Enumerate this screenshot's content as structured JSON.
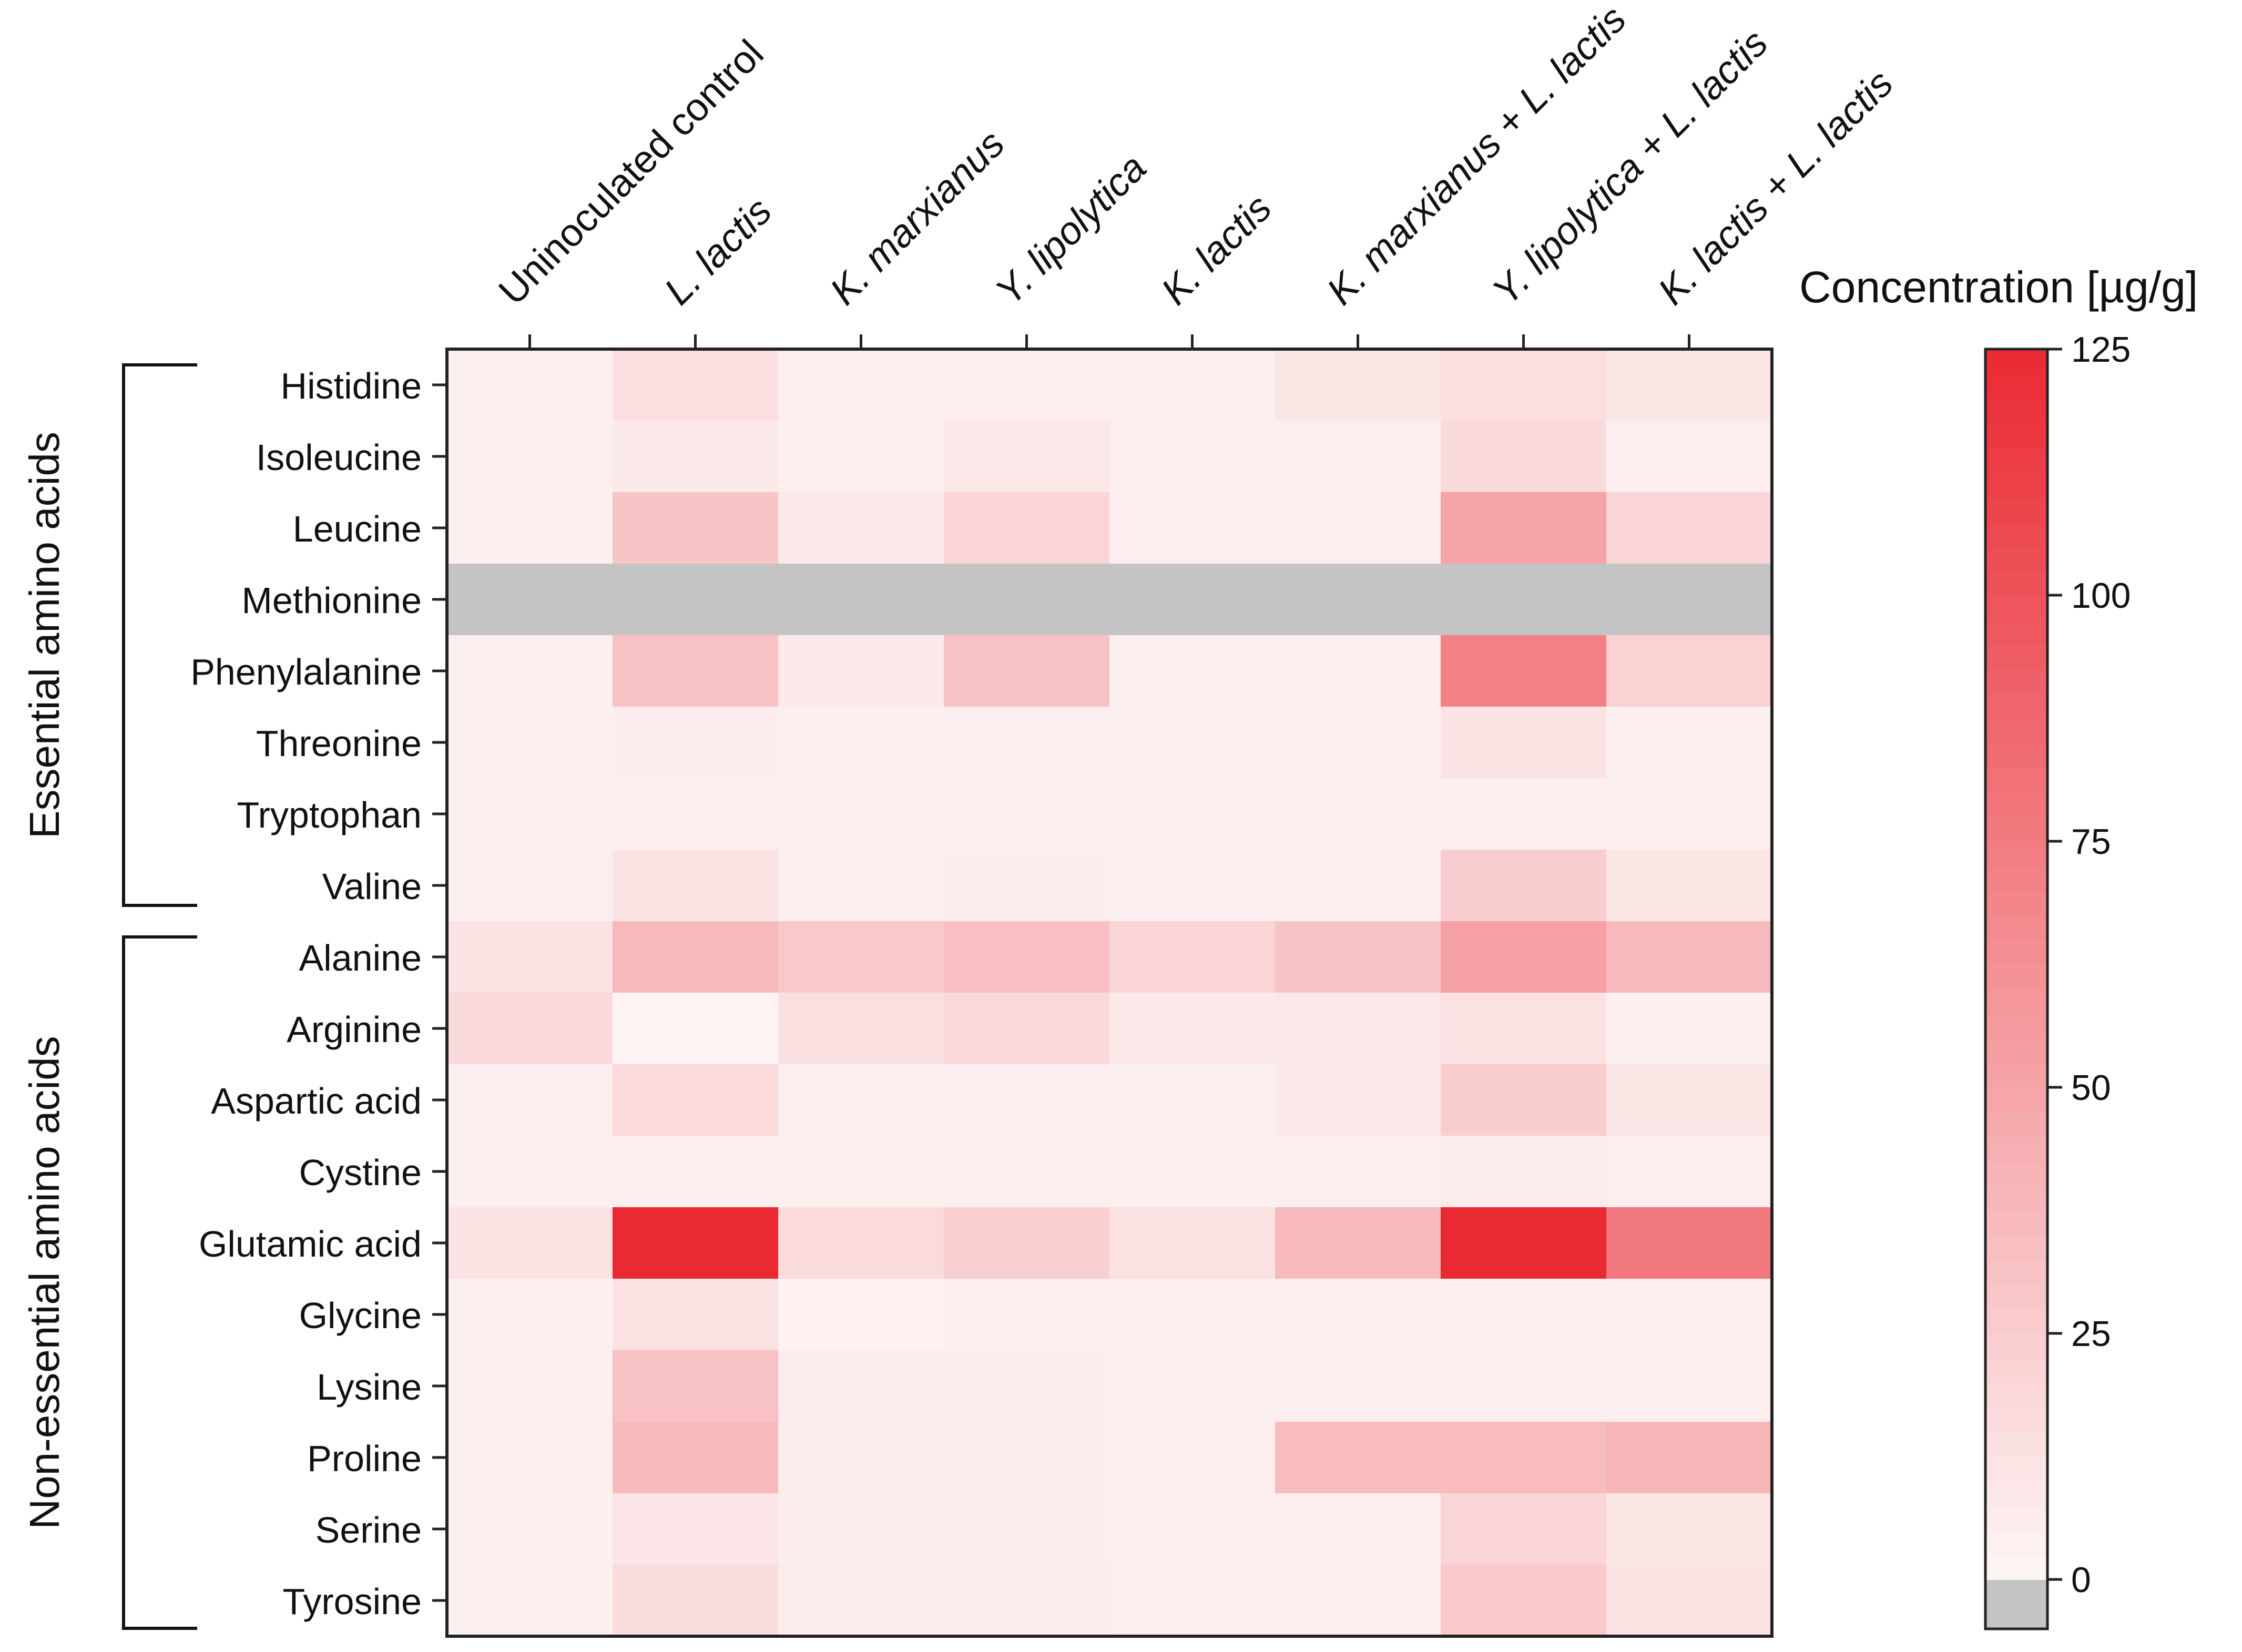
{
  "chart_data": {
    "type": "heatmap",
    "x_labels": [
      "Uninoculated control",
      "L. lactis",
      "K. marxianus",
      "Y. lipolytica",
      "K. lactis",
      "K. marxianus + L. lactis",
      "Y. lipolytica + L. lactis",
      "K. lactis + L. lactis"
    ],
    "y_labels": [
      "Histidine",
      "Isoleucine",
      "Leucine",
      "Methionine",
      "Phenylalanine",
      "Threonine",
      "Tryptophan",
      "Valine",
      "Alanine",
      "Arginine",
      "Aspartic acid",
      "Cystine",
      "Glutamic acid",
      "Glycine",
      "Lysine",
      "Proline",
      "Serine",
      "Tyrosine"
    ],
    "groups": [
      {
        "label": "Essential amino acids",
        "rows": [
          "Histidine",
          "Isoleucine",
          "Leucine",
          "Methionine",
          "Phenylalanine",
          "Threonine",
          "Tryptophan",
          "Valine"
        ]
      },
      {
        "label": "Non-essential amino acids",
        "rows": [
          "Alanine",
          "Arginine",
          "Aspartic acid",
          "Cystine",
          "Glutamic acid",
          "Glycine",
          "Lysine",
          "Proline",
          "Serine",
          "Tyrosine"
        ]
      }
    ],
    "values": [
      [
        4,
        14,
        5,
        5,
        5,
        10,
        15,
        10
      ],
      [
        4,
        8,
        4,
        9,
        5,
        5,
        18,
        5
      ],
      [
        4,
        30,
        8,
        20,
        5,
        5,
        50,
        20
      ],
      [
        null,
        null,
        null,
        null,
        null,
        null,
        null,
        null
      ],
      [
        4,
        32,
        8,
        32,
        4,
        4,
        72,
        22
      ],
      [
        4,
        6,
        4,
        4,
        4,
        4,
        12,
        4
      ],
      [
        4,
        4,
        4,
        4,
        4,
        4,
        4,
        4
      ],
      [
        4,
        12,
        4,
        6,
        4,
        4,
        25,
        10
      ],
      [
        12,
        37,
        28,
        33,
        20,
        30,
        52,
        37
      ],
      [
        18,
        2,
        14,
        18,
        8,
        9,
        12,
        4
      ],
      [
        4,
        17,
        4,
        4,
        4,
        8,
        26,
        10
      ],
      [
        4,
        4,
        4,
        4,
        4,
        4,
        7,
        5
      ],
      [
        12,
        125,
        17,
        24,
        13,
        37,
        125,
        77
      ],
      [
        4,
        13,
        3,
        5,
        5,
        5,
        5,
        5
      ],
      [
        4,
        32,
        6,
        6,
        5,
        5,
        5,
        5
      ],
      [
        4,
        37,
        6,
        6,
        5,
        36,
        36,
        40
      ],
      [
        4,
        11,
        6,
        6,
        5,
        5,
        20,
        10
      ],
      [
        4,
        16,
        7,
        7,
        5,
        5,
        28,
        12
      ]
    ],
    "missing_value_color": "#c4c4c4",
    "color_low": "#fdf6f6",
    "color_high": "#ea2a33",
    "colorbar": {
      "title": "Concentration [µg/g]",
      "min": 0,
      "max": 125,
      "ticks": [
        0,
        25,
        50,
        75,
        100,
        125
      ]
    },
    "legend_position": "right"
  }
}
